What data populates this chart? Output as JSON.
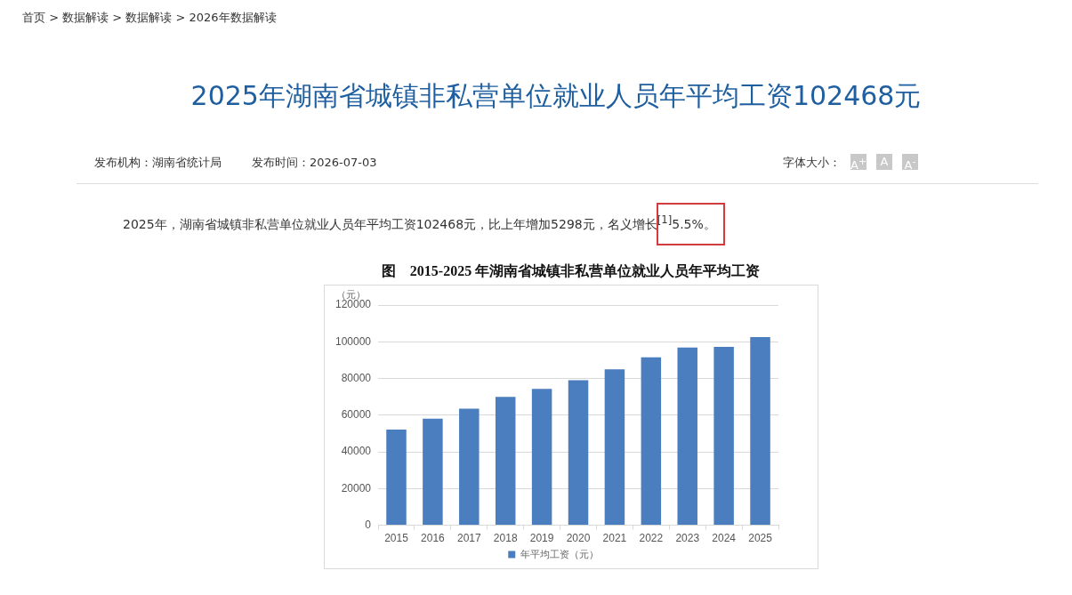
{
  "chart_data": {
    "type": "bar",
    "title": "2025年湖南省城镇非私营单位就业人员年平均工资102468元",
    "subtitle": "图　2015-2025 年湖南省城镇非私营单位就业人员年平均工资",
    "ylabel": "（元）",
    "categories": [
      "2015",
      "2016",
      "2017",
      "2018",
      "2019",
      "2020",
      "2021",
      "2022",
      "2023",
      "2024",
      "2025"
    ],
    "series": [
      {
        "name": "年平均工资（元）",
        "color": "#4a7ebf",
        "values": [
          52200,
          58100,
          63500,
          69900,
          74300,
          79100,
          85000,
          91500,
          96900,
          97200,
          102500
        ]
      }
    ],
    "ylim": [
      0,
      120000
    ],
    "yticks": [
      0,
      20000,
      40000,
      60000,
      80000,
      100000,
      120000
    ],
    "grid": "y",
    "legend": "bottom",
    "annotations": [
      "首页 > 数据解读 > 数据解读 > 2026年数据解读",
      "发布机构：湖南省统计局",
      "发布时间：2026-07-03",
      "字体大小：",
      "A$^{+}$",
      "A",
      "A$^{-}$",
      "2025年，湖南省城镇非私营单位就业人员年平均工资102468元，比上年增加5298元，名义增长$^{[1]}$5.5%。"
    ]
  }
}
